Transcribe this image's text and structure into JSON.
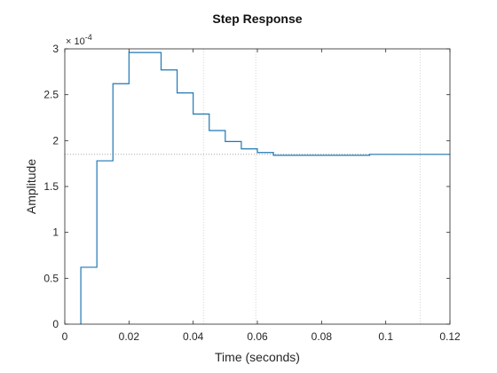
{
  "chart_data": {
    "type": "line",
    "title": "Step Response",
    "xlabel": "Time (seconds)",
    "ylabel": "Amplitude",
    "exponent_label": "× 10",
    "exponent": "-4",
    "xlim": [
      0,
      0.12
    ],
    "ylim": [
      0,
      3
    ],
    "xticks": [
      0,
      0.02,
      0.04,
      0.06,
      0.08,
      0.1,
      0.12
    ],
    "xtick_labels": [
      "0",
      "0.02",
      "0.04",
      "0.06",
      "0.08",
      "0.1",
      "0.12"
    ],
    "yticks": [
      0,
      0.5,
      1,
      1.5,
      2,
      2.5,
      3
    ],
    "ytick_labels": [
      "0",
      "0.5",
      "1",
      "1.5",
      "2",
      "2.5",
      "3"
    ],
    "steady_state": 1.85,
    "settling_guides_x": [
      0.0432,
      0.0595,
      0.1107
    ],
    "series": [
      {
        "color": "#1f77b4",
        "step": true,
        "x": [
          0.005,
          0.01,
          0.015,
          0.02,
          0.025,
          0.03,
          0.035,
          0.04,
          0.045,
          0.05,
          0.055,
          0.06,
          0.065,
          0.07,
          0.075,
          0.08,
          0.085,
          0.09,
          0.095,
          0.1,
          0.105,
          0.11,
          0.115,
          0.12
        ],
        "y": [
          0.62,
          1.78,
          2.62,
          2.96,
          2.96,
          2.77,
          2.52,
          2.29,
          2.11,
          1.99,
          1.91,
          1.87,
          1.84,
          1.84,
          1.84,
          1.84,
          1.84,
          1.84,
          1.85,
          1.85,
          1.85,
          1.85,
          1.85,
          1.85
        ]
      }
    ]
  }
}
